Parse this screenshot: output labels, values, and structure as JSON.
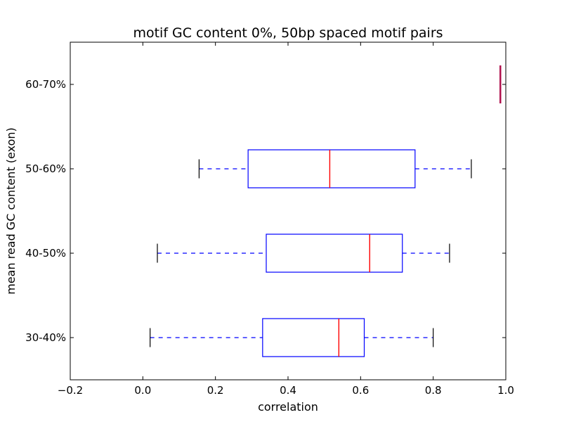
{
  "chart_data": {
    "type": "boxplot",
    "orientation": "horizontal",
    "title": "motif GC content 0%, 50bp spaced motif pairs",
    "xlabel": "correlation",
    "ylabel": "mean read GC content (exon)",
    "xlim": [
      -0.2,
      1.0
    ],
    "xticks": [
      -0.2,
      0.0,
      0.2,
      0.4,
      0.6,
      0.8,
      1.0
    ],
    "xtick_labels": [
      "−0.2",
      "0.0",
      "0.2",
      "0.4",
      "0.6",
      "0.8",
      "1.0"
    ],
    "categories": [
      "30-40%",
      "40-50%",
      "50-60%",
      "60-70%"
    ],
    "boxes": [
      {
        "label": "30-40%",
        "whisker_low": 0.02,
        "q1": 0.33,
        "median": 0.54,
        "q3": 0.61,
        "whisker_high": 0.8
      },
      {
        "label": "40-50%",
        "whisker_low": 0.04,
        "q1": 0.34,
        "median": 0.625,
        "q3": 0.715,
        "whisker_high": 0.845
      },
      {
        "label": "50-60%",
        "whisker_low": 0.155,
        "q1": 0.29,
        "median": 0.515,
        "q3": 0.75,
        "whisker_high": 0.905
      },
      {
        "label": "60-70%",
        "whisker_low": 0.985,
        "q1": 0.985,
        "median": 0.985,
        "q3": 0.985,
        "whisker_high": 0.985
      }
    ],
    "colors": {
      "box": "#0000ff",
      "median": "#ff0000",
      "whisker": "#0000ff",
      "cap": "#000000",
      "overlap": "#b0124e"
    },
    "grid": false
  }
}
